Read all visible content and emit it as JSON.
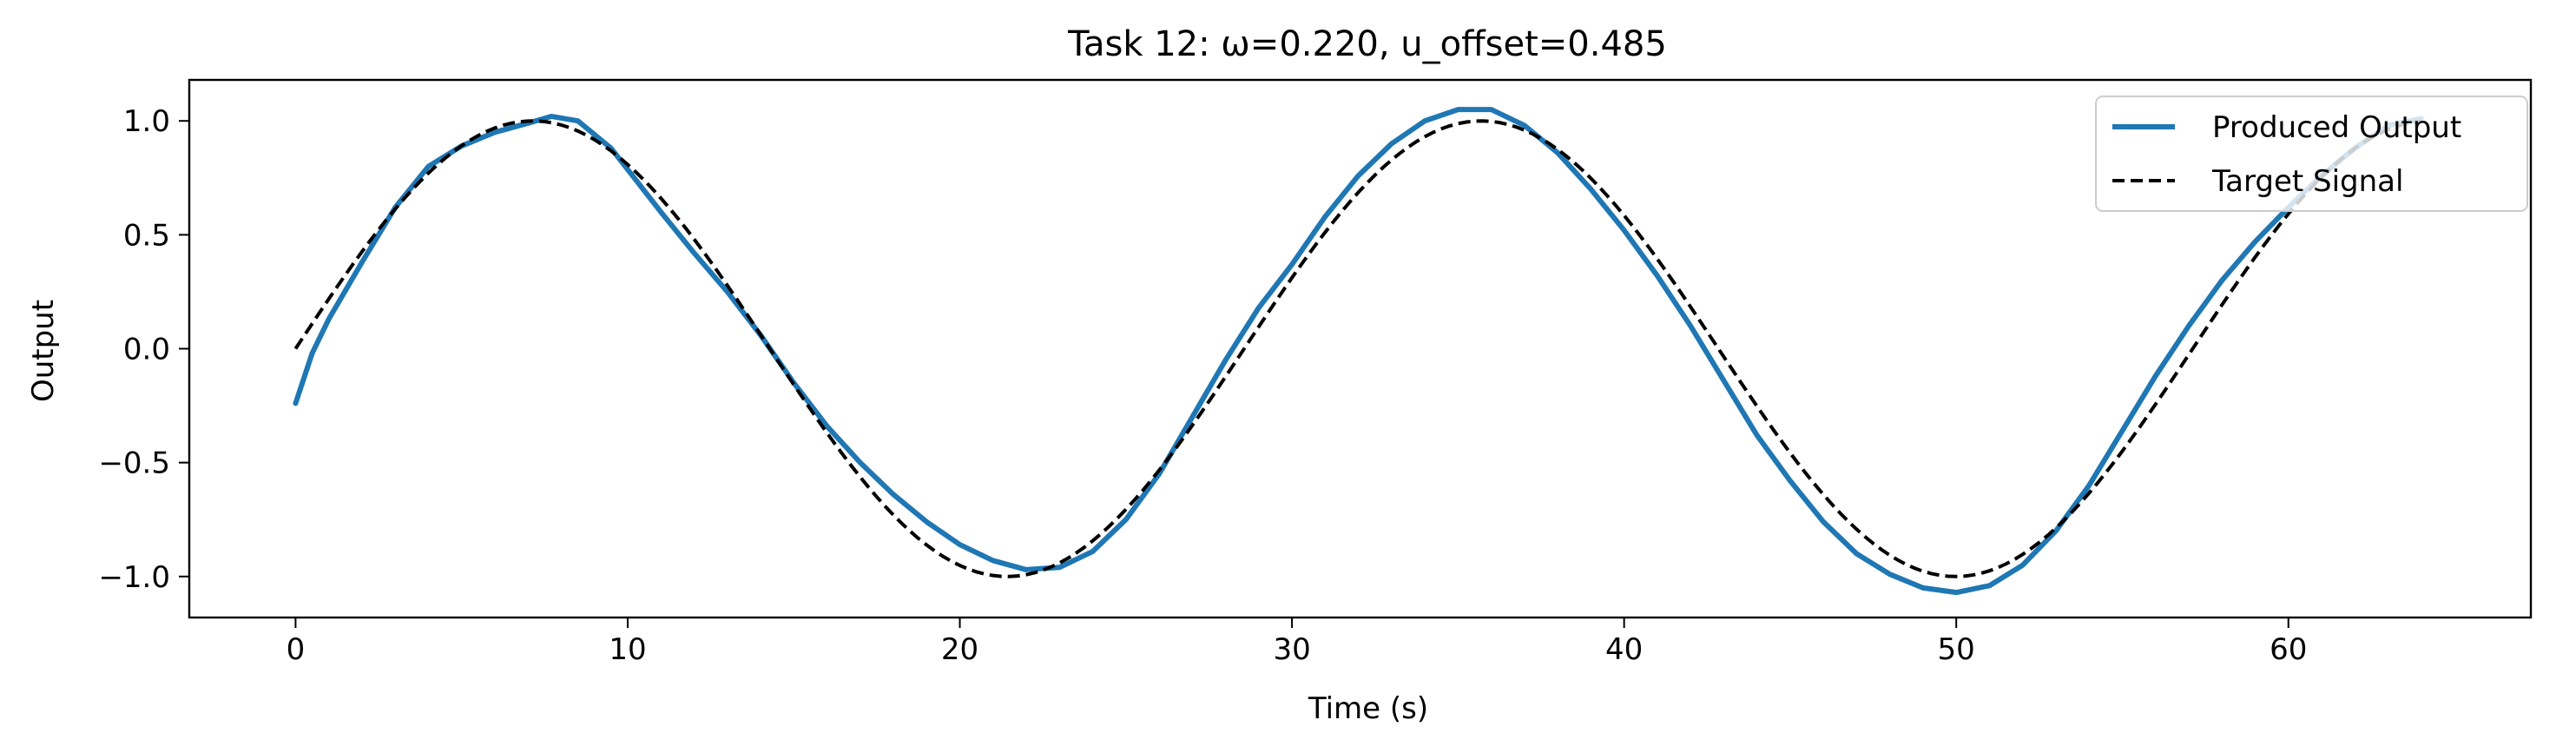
{
  "chart_data": {
    "type": "line",
    "title": "Task 12: ω=0.220, u_offset=0.485",
    "xlabel": "Time (s)",
    "ylabel": "Output",
    "xlim": [
      -3.2,
      67.3
    ],
    "ylim": [
      -1.18,
      1.18
    ],
    "xticks": [
      0,
      10,
      20,
      30,
      40,
      50,
      60
    ],
    "xtick_labels": [
      "0",
      "10",
      "20",
      "30",
      "40",
      "50",
      "60"
    ],
    "yticks": [
      1.0,
      0.5,
      0.0,
      -0.5,
      -1.0
    ],
    "ytick_labels": [
      "1.0",
      "0.5",
      "0.0",
      "−0.5",
      "−1.0"
    ],
    "grid": false,
    "legend_position": "upper right",
    "series": [
      {
        "name": "Produced Output",
        "color": "#1f77b4",
        "style": "solid",
        "points": [
          [
            0,
            -0.24
          ],
          [
            0.5,
            -0.02
          ],
          [
            1,
            0.13
          ],
          [
            2,
            0.38
          ],
          [
            3,
            0.62
          ],
          [
            4,
            0.8
          ],
          [
            5,
            0.89
          ],
          [
            6,
            0.95
          ],
          [
            7,
            0.99
          ],
          [
            7.7,
            1.02
          ],
          [
            8.5,
            1.0
          ],
          [
            9.5,
            0.88
          ],
          [
            11,
            0.6
          ],
          [
            12,
            0.42
          ],
          [
            13,
            0.25
          ],
          [
            14,
            0.06
          ],
          [
            15,
            -0.15
          ],
          [
            16,
            -0.34
          ],
          [
            17,
            -0.5
          ],
          [
            18,
            -0.64
          ],
          [
            19,
            -0.76
          ],
          [
            20,
            -0.86
          ],
          [
            21,
            -0.93
          ],
          [
            22,
            -0.97
          ],
          [
            23,
            -0.96
          ],
          [
            24,
            -0.89
          ],
          [
            25,
            -0.75
          ],
          [
            26,
            -0.55
          ],
          [
            27,
            -0.3
          ],
          [
            28,
            -0.05
          ],
          [
            29,
            0.18
          ],
          [
            30,
            0.37
          ],
          [
            31,
            0.58
          ],
          [
            32,
            0.76
          ],
          [
            33,
            0.9
          ],
          [
            34,
            1.0
          ],
          [
            35,
            1.05
          ],
          [
            36,
            1.05
          ],
          [
            37,
            0.98
          ],
          [
            38,
            0.86
          ],
          [
            39,
            0.7
          ],
          [
            40,
            0.52
          ],
          [
            41,
            0.32
          ],
          [
            42,
            0.1
          ],
          [
            43,
            -0.14
          ],
          [
            44,
            -0.38
          ],
          [
            45,
            -0.58
          ],
          [
            46,
            -0.76
          ],
          [
            47,
            -0.9
          ],
          [
            48,
            -0.99
          ],
          [
            49,
            -1.05
          ],
          [
            50,
            -1.07
          ],
          [
            51,
            -1.04
          ],
          [
            52,
            -0.95
          ],
          [
            53,
            -0.8
          ],
          [
            54,
            -0.6
          ],
          [
            55,
            -0.36
          ],
          [
            56,
            -0.12
          ],
          [
            57,
            0.1
          ],
          [
            58,
            0.3
          ],
          [
            59,
            0.47
          ],
          [
            60,
            0.62
          ],
          [
            61,
            0.76
          ],
          [
            62,
            0.88
          ],
          [
            63,
            0.98
          ],
          [
            64,
            1.01
          ]
        ]
      },
      {
        "name": "Target Signal",
        "color": "#000000",
        "style": "dashed",
        "function": "sin",
        "omega": 0.22,
        "x_range": [
          0,
          64
        ]
      }
    ]
  }
}
